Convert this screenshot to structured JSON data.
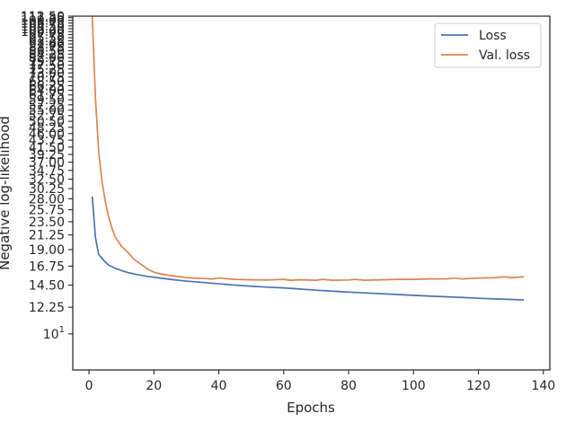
{
  "chart_data": {
    "type": "line",
    "xlabel": "Epochs",
    "ylabel": "Negative log-likelihood",
    "xlim": [
      -5,
      142
    ],
    "xticks": [
      0,
      20,
      40,
      60,
      80,
      100,
      120,
      140
    ],
    "ylim": [
      7.6,
      112.5
    ],
    "yscale": "log",
    "yticks": [
      {
        "v": 10,
        "base": "10",
        "exp": "1"
      },
      {
        "v": 12.25,
        "label": "12.25"
      },
      {
        "v": 14.5,
        "label": "14.50"
      },
      {
        "v": 16.75,
        "label": "16.75"
      },
      {
        "v": 19.0,
        "label": "19.00"
      },
      {
        "v": 21.25,
        "label": "21.25"
      },
      {
        "v": 23.5,
        "label": "23.50"
      },
      {
        "v": 25.75,
        "label": "25.75"
      },
      {
        "v": 28.0,
        "label": "28.00"
      },
      {
        "v": 30.25,
        "label": "30.25"
      },
      {
        "v": 32.5,
        "label": "32.50"
      },
      {
        "v": 34.75,
        "label": "34.75"
      },
      {
        "v": 37.0,
        "label": "37.00"
      },
      {
        "v": 39.25,
        "label": "39.25"
      },
      {
        "v": 41.5,
        "label": "41.50"
      },
      {
        "v": 43.75,
        "label": "43.75"
      },
      {
        "v": 46.0,
        "label": "46.00"
      },
      {
        "v": 48.25,
        "label": "48.25"
      },
      {
        "v": 50.5,
        "label": "50.50"
      },
      {
        "v": 52.75,
        "label": "52.75"
      },
      {
        "v": 55.0,
        "label": "55.00"
      },
      {
        "v": 57.25,
        "label": "57.25"
      },
      {
        "v": 59.5,
        "label": "59.50"
      },
      {
        "v": 61.75,
        "label": "61.75"
      },
      {
        "v": 64.0,
        "label": "64.00"
      },
      {
        "v": 66.25,
        "label": "66.25"
      },
      {
        "v": 68.5,
        "label": "68.50"
      },
      {
        "v": 70.75,
        "label": "70.75"
      },
      {
        "v": 73.0,
        "label": "73.00"
      },
      {
        "v": 75.25,
        "label": "75.25"
      },
      {
        "v": 77.5,
        "label": "77.50"
      },
      {
        "v": 79.75,
        "label": "79.75"
      },
      {
        "v": 82.0,
        "label": "82.00"
      },
      {
        "v": 84.25,
        "label": "84.25"
      },
      {
        "v": 86.5,
        "label": "86.50"
      },
      {
        "v": 88.75,
        "label": "88.75"
      },
      {
        "v": 91.0,
        "label": "91.00"
      },
      {
        "v": 93.25,
        "label": "93.25"
      },
      {
        "v": 95.5,
        "label": "95.50"
      },
      {
        "v": 97.75,
        "label": "97.75"
      },
      {
        "v": 100.0,
        "label": "100.00"
      },
      {
        "v": 102.25,
        "label": "102.25"
      },
      {
        "v": 104.5,
        "label": "104.50"
      },
      {
        "v": 106.75,
        "label": "106.75"
      },
      {
        "v": 109.0,
        "label": "109.00"
      },
      {
        "v": 111.25,
        "label": "111.25"
      },
      {
        "v": 112.5,
        "label": "112.50"
      }
    ],
    "legend": "top-right",
    "grid": false,
    "series": [
      {
        "name": "Loss",
        "color": "#4c72b0",
        "points": [
          [
            1,
            28.5
          ],
          [
            2,
            20.8
          ],
          [
            3,
            18.3
          ],
          [
            4,
            17.8
          ],
          [
            5,
            17.3
          ],
          [
            6,
            16.9
          ],
          [
            8,
            16.5
          ],
          [
            10,
            16.2
          ],
          [
            12,
            15.95
          ],
          [
            15,
            15.7
          ],
          [
            18,
            15.5
          ],
          [
            20,
            15.4
          ],
          [
            25,
            15.15
          ],
          [
            30,
            14.95
          ],
          [
            35,
            14.8
          ],
          [
            40,
            14.65
          ],
          [
            45,
            14.5
          ],
          [
            50,
            14.38
          ],
          [
            55,
            14.28
          ],
          [
            60,
            14.2
          ],
          [
            65,
            14.08
          ],
          [
            70,
            13.95
          ],
          [
            75,
            13.85
          ],
          [
            80,
            13.75
          ],
          [
            85,
            13.67
          ],
          [
            90,
            13.58
          ],
          [
            95,
            13.5
          ],
          [
            100,
            13.42
          ],
          [
            105,
            13.34
          ],
          [
            110,
            13.27
          ],
          [
            115,
            13.2
          ],
          [
            120,
            13.12
          ],
          [
            125,
            13.06
          ],
          [
            130,
            13.0
          ],
          [
            134,
            12.95
          ]
        ]
      },
      {
        "name": "Val. loss",
        "color": "#dd8452",
        "points": [
          [
            1,
            112.0
          ],
          [
            2,
            60.0
          ],
          [
            3,
            40.0
          ],
          [
            4,
            32.0
          ],
          [
            5,
            27.5
          ],
          [
            6,
            24.5
          ],
          [
            7,
            22.5
          ],
          [
            8,
            21.0
          ],
          [
            10,
            19.5
          ],
          [
            12,
            18.6
          ],
          [
            14,
            17.6
          ],
          [
            16,
            17.0
          ],
          [
            18,
            16.4
          ],
          [
            20,
            16.0
          ],
          [
            22,
            15.8
          ],
          [
            25,
            15.6
          ],
          [
            28,
            15.45
          ],
          [
            30,
            15.35
          ],
          [
            35,
            15.25
          ],
          [
            38,
            15.2
          ],
          [
            40,
            15.3
          ],
          [
            45,
            15.15
          ],
          [
            50,
            15.1
          ],
          [
            55,
            15.08
          ],
          [
            60,
            15.15
          ],
          [
            62,
            15.05
          ],
          [
            65,
            15.1
          ],
          [
            70,
            15.05
          ],
          [
            72,
            15.15
          ],
          [
            75,
            15.05
          ],
          [
            80,
            15.08
          ],
          [
            82,
            15.15
          ],
          [
            85,
            15.05
          ],
          [
            90,
            15.1
          ],
          [
            95,
            15.15
          ],
          [
            100,
            15.15
          ],
          [
            105,
            15.2
          ],
          [
            110,
            15.2
          ],
          [
            113,
            15.3
          ],
          [
            115,
            15.2
          ],
          [
            120,
            15.3
          ],
          [
            125,
            15.35
          ],
          [
            128,
            15.45
          ],
          [
            130,
            15.35
          ],
          [
            134,
            15.45
          ]
        ]
      }
    ]
  }
}
